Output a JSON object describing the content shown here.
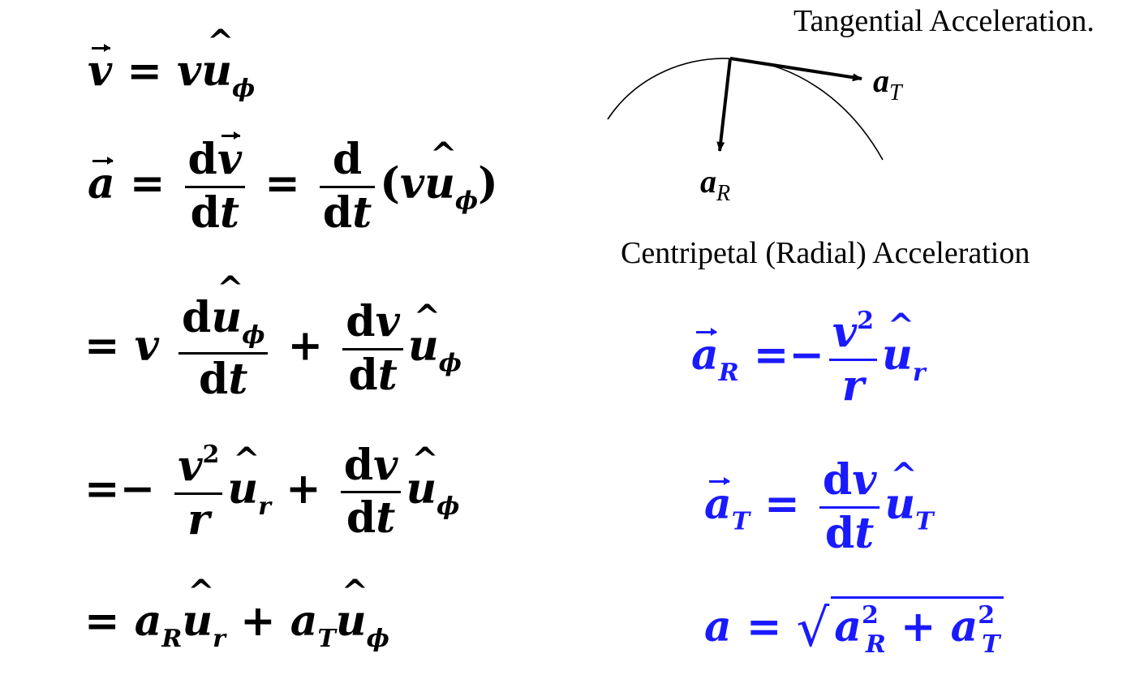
{
  "labels": {
    "tangential_title": "Tangential Acceleration.",
    "centripetal_title": "Centripetal (Radial) Acceleration",
    "aT_label": {
      "base": "a",
      "sub": "T"
    },
    "aR_label": {
      "base": "a",
      "sub": "R"
    }
  },
  "symbols": {
    "v": "v",
    "a": "a",
    "u": "u",
    "phi": "ϕ",
    "r": "r",
    "R": "R",
    "T": "T",
    "d": "d",
    "dt": "dt",
    "dv": "dv",
    "equals": "=",
    "plus": "+",
    "minus": "−",
    "two": "2",
    "lparen": "(",
    "rparen": ")"
  },
  "colors": {
    "text": "#000000",
    "highlight": "#1a1aff"
  }
}
